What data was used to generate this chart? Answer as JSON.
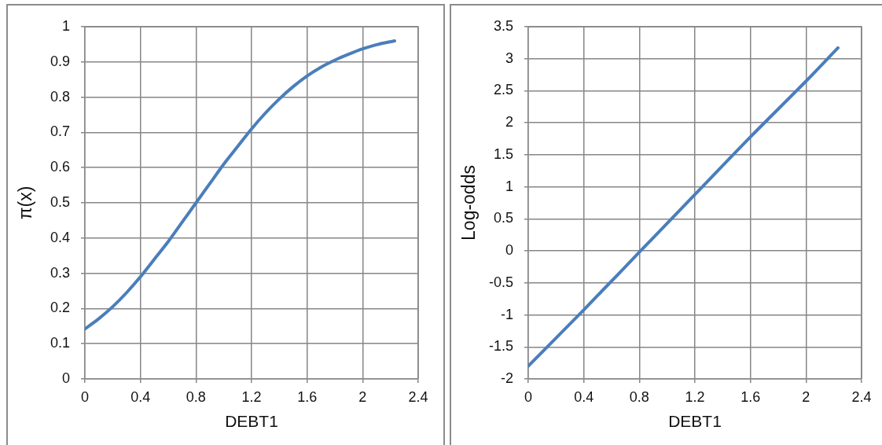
{
  "chart_data": [
    {
      "type": "line",
      "xlabel": "DEBT1",
      "ylabel": "π(x)",
      "x": [
        0,
        0.1,
        0.2,
        0.3,
        0.4,
        0.5,
        0.6,
        0.7,
        0.8,
        0.9,
        1.0,
        1.1,
        1.2,
        1.3,
        1.4,
        1.5,
        1.6,
        1.7,
        1.8,
        1.9,
        2.0,
        2.1,
        2.23
      ],
      "series": [
        {
          "color": "#4a7ebb",
          "values": [
            0.142,
            0.171,
            0.205,
            0.245,
            0.29,
            0.34,
            0.39,
            0.445,
            0.5,
            0.555,
            0.61,
            0.66,
            0.71,
            0.755,
            0.795,
            0.83,
            0.86,
            0.885,
            0.905,
            0.922,
            0.937,
            0.949,
            0.96
          ]
        }
      ],
      "xlim": [
        0,
        2.4
      ],
      "xticks": [
        0,
        0.4,
        0.8,
        1.2,
        1.6,
        2,
        2.4
      ],
      "ylim": [
        0,
        1
      ],
      "yticks": [
        0,
        0.1,
        0.2,
        0.3,
        0.4,
        0.5,
        0.6,
        0.7,
        0.8,
        0.9,
        1
      ],
      "grid": true,
      "marker": "none",
      "line_style": "solid"
    },
    {
      "type": "line",
      "xlabel": "DEBT1",
      "ylabel": "Log-odds",
      "x": [
        0,
        0.4,
        0.8,
        1.2,
        1.6,
        2.0,
        2.23
      ],
      "series": [
        {
          "color": "#4a7ebb",
          "values": [
            -1.8,
            -0.92,
            -0.02,
            0.88,
            1.78,
            2.65,
            3.17
          ]
        }
      ],
      "xlim": [
        0,
        2.4
      ],
      "xticks": [
        0,
        0.4,
        0.8,
        1.2,
        1.6,
        2,
        2.4
      ],
      "ylim": [
        -2,
        3.5
      ],
      "yticks": [
        -2,
        -1.5,
        -1,
        -0.5,
        0,
        0.5,
        1,
        1.5,
        2,
        2.5,
        3,
        3.5
      ],
      "grid": true,
      "marker": "none",
      "line_style": "solid"
    }
  ]
}
